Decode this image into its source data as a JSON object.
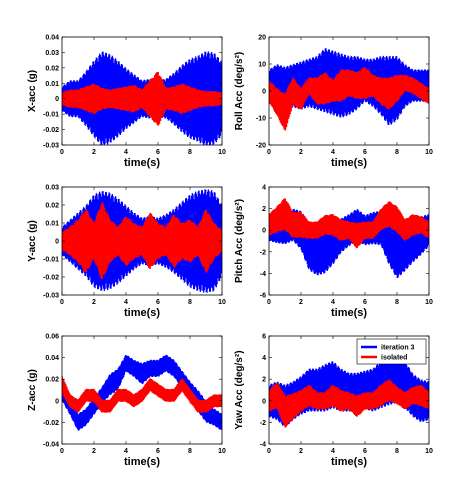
{
  "colors": {
    "iteration3": "#0000ff",
    "isolated": "#ff0000",
    "axis": "#000000"
  },
  "chart_data": [
    {
      "type": "line",
      "panel": "x-acc",
      "xlabel": "time(s)",
      "ylabel": "X-acc (g)",
      "xlim": [
        0,
        10
      ],
      "ylim": [
        -0.03,
        0.04
      ],
      "xticks": [
        "0",
        "2",
        "4",
        "6",
        "8",
        "10"
      ],
      "yticks": [
        "-0.03",
        "-0.02",
        "-0.01",
        "0",
        "0.01",
        "0.02",
        "0.03",
        "0.04"
      ],
      "legend": null,
      "series": [
        {
          "name": "iteration 3",
          "color": "#0000ff",
          "x": [
            0,
            0.5,
            1,
            1.5,
            2,
            2.5,
            3,
            3.5,
            4,
            4.5,
            5,
            5.5,
            6,
            6.5,
            7,
            7.5,
            8,
            8.5,
            9,
            9.5,
            10
          ],
          "center": [
            0,
            0,
            0,
            0,
            0,
            0,
            0,
            0,
            0,
            0,
            0,
            0,
            0,
            0,
            0,
            0,
            0,
            0,
            0,
            0,
            0
          ],
          "amplitude": [
            0.008,
            0.012,
            0.012,
            0.018,
            0.025,
            0.031,
            0.029,
            0.025,
            0.02,
            0.016,
            0.012,
            0.013,
            0.012,
            0.013,
            0.017,
            0.022,
            0.026,
            0.028,
            0.031,
            0.03,
            0.024
          ]
        },
        {
          "name": "isolated",
          "color": "#ff0000",
          "x": [
            0,
            0.5,
            1,
            1.5,
            2,
            2.5,
            3,
            3.5,
            4,
            4.5,
            5,
            5.5,
            6,
            6.5,
            7,
            7.5,
            8,
            8.5,
            9,
            9.5,
            10
          ],
          "center": [
            0,
            0,
            0,
            0,
            0,
            0,
            0,
            0,
            0,
            0,
            0,
            0,
            0,
            0,
            0,
            0,
            0,
            0,
            0,
            0,
            0
          ],
          "amplitude": [
            0.004,
            0.006,
            0.006,
            0.008,
            0.01,
            0.007,
            0.006,
            0.007,
            0.008,
            0.009,
            0.006,
            0.012,
            0.018,
            0.007,
            0.008,
            0.01,
            0.008,
            0.006,
            0.005,
            0.005,
            0.004
          ]
        }
      ]
    },
    {
      "type": "line",
      "panel": "roll-acc",
      "xlabel": "time(s)",
      "ylabel": "Roll Acc (deg/s²)",
      "xlim": [
        0,
        10
      ],
      "ylim": [
        -20,
        20
      ],
      "xticks": [
        "0",
        "2",
        "4",
        "6",
        "8",
        "10"
      ],
      "yticks": [
        "-20",
        "-10",
        "0",
        "10",
        "20"
      ],
      "legend": null,
      "series": [
        {
          "name": "iteration 3",
          "color": "#0000ff",
          "x": [
            0,
            0.5,
            1,
            1.5,
            2,
            2.5,
            3,
            3.5,
            4,
            4.5,
            5,
            5.5,
            6,
            6.5,
            7,
            7.5,
            8,
            8.5,
            9,
            9.5,
            10
          ],
          "center": [
            2,
            2,
            1,
            2,
            2,
            3,
            3,
            4,
            3,
            2,
            2,
            3,
            4,
            3,
            2,
            0,
            1,
            2,
            2,
            2,
            2
          ],
          "amplitude": [
            6,
            8,
            8,
            8,
            9,
            9,
            10,
            12,
            12,
            12,
            11,
            10,
            8,
            9,
            11,
            13,
            12,
            8,
            6,
            6,
            6
          ]
        },
        {
          "name": "isolated",
          "color": "#ff0000",
          "x": [
            0,
            0.5,
            1,
            1.5,
            2,
            2.5,
            3,
            3.5,
            4,
            4.5,
            5,
            5.5,
            6,
            6.5,
            7,
            7.5,
            8,
            8.5,
            9,
            9.5,
            10
          ],
          "center": [
            0,
            -4,
            -8,
            0,
            -3,
            2,
            0,
            1,
            0,
            2,
            3,
            2,
            3,
            2,
            0,
            -1,
            1,
            3,
            2,
            0,
            -2
          ],
          "amplitude": [
            4,
            5,
            7,
            5,
            4,
            3,
            5,
            6,
            4,
            6,
            5,
            5,
            6,
            4,
            5,
            6,
            5,
            3,
            3,
            3,
            3
          ]
        }
      ]
    },
    {
      "type": "line",
      "panel": "y-acc",
      "xlabel": "time(s)",
      "ylabel": "Y-acc (g)",
      "xlim": [
        0,
        10
      ],
      "ylim": [
        -0.03,
        0.03
      ],
      "xticks": [
        "0",
        "2",
        "4",
        "6",
        "8",
        "10"
      ],
      "yticks": [
        "-0.03",
        "-0.02",
        "-0.01",
        "0",
        "0.01",
        "0.02",
        "0.03"
      ],
      "legend": null,
      "series": [
        {
          "name": "iteration 3",
          "color": "#0000ff",
          "x": [
            0,
            0.5,
            1,
            1.5,
            2,
            2.5,
            3,
            3.5,
            4,
            4.5,
            5,
            5.5,
            6,
            6.5,
            7,
            7.5,
            8,
            8.5,
            9,
            9.5,
            10
          ],
          "center": [
            0,
            0,
            0,
            0,
            0,
            0,
            0,
            0,
            0,
            0,
            0,
            0,
            0,
            0,
            0,
            0,
            0,
            0,
            0,
            0,
            0
          ],
          "amplitude": [
            0.008,
            0.012,
            0.016,
            0.02,
            0.026,
            0.028,
            0.027,
            0.024,
            0.02,
            0.016,
            0.013,
            0.014,
            0.013,
            0.015,
            0.018,
            0.022,
            0.026,
            0.028,
            0.029,
            0.028,
            0.02
          ]
        },
        {
          "name": "isolated",
          "color": "#ff0000",
          "x": [
            0,
            0.5,
            1,
            1.5,
            2,
            2.5,
            3,
            3.5,
            4,
            4.5,
            5,
            5.5,
            6,
            6.5,
            7,
            7.5,
            8,
            8.5,
            9,
            9.5,
            10
          ],
          "center": [
            0,
            0,
            0,
            0,
            0,
            0,
            0,
            0,
            0,
            0,
            0,
            0,
            0,
            0,
            0,
            0,
            0,
            0,
            0,
            0,
            0
          ],
          "amplitude": [
            0.005,
            0.008,
            0.012,
            0.018,
            0.01,
            0.022,
            0.012,
            0.008,
            0.014,
            0.01,
            0.008,
            0.016,
            0.01,
            0.008,
            0.015,
            0.01,
            0.012,
            0.008,
            0.018,
            0.01,
            0.006
          ]
        }
      ]
    },
    {
      "type": "line",
      "panel": "pitch-acc",
      "xlabel": "time(s)",
      "ylabel": "Pitch Acc (deg/s²)",
      "xlim": [
        0,
        10
      ],
      "ylim": [
        -6,
        4
      ],
      "xticks": [
        "0",
        "2",
        "4",
        "6",
        "8",
        "10"
      ],
      "yticks": [
        "-6",
        "-4",
        "-2",
        "0",
        "2",
        "4"
      ],
      "legend": null,
      "series": [
        {
          "name": "iteration 3",
          "color": "#0000ff",
          "x": [
            0,
            0.5,
            1,
            1.5,
            2,
            2.5,
            3,
            3.5,
            4,
            4.5,
            5,
            5.5,
            6,
            6.5,
            7,
            7.5,
            8,
            8.5,
            9,
            9.5,
            10
          ],
          "center": [
            0,
            0,
            0,
            0.5,
            0,
            -1.5,
            -2,
            -1.5,
            -1,
            -0.5,
            0,
            0.5,
            0,
            0.2,
            0.2,
            -1,
            -2,
            -1.5,
            -1,
            -0.5,
            0
          ],
          "amplitude": [
            1,
            1.2,
            1.3,
            1.5,
            1.8,
            2.2,
            2.2,
            2.5,
            2.2,
            1.6,
            1.5,
            1.5,
            1.4,
            1.5,
            1.6,
            2.2,
            2.5,
            2.3,
            2,
            1.8,
            1.5
          ]
        },
        {
          "name": "isolated",
          "color": "#ff0000",
          "x": [
            0,
            0.5,
            1,
            1.5,
            2,
            2.5,
            3,
            3.5,
            4,
            4.5,
            5,
            5.5,
            6,
            6.5,
            7,
            7.5,
            8,
            8.5,
            9,
            9.5,
            10
          ],
          "center": [
            0.5,
            1,
            1.5,
            0.5,
            0.5,
            0,
            0,
            0.5,
            0.5,
            0,
            0,
            -0.5,
            0,
            0,
            1,
            1.5,
            1,
            0,
            0.5,
            0.5,
            0
          ],
          "amplitude": [
            1,
            1.2,
            1.5,
            1.2,
            1.2,
            0.8,
            0.8,
            0.9,
            1,
            1,
            0.8,
            1.2,
            0.8,
            0.8,
            1,
            1.2,
            1.2,
            1,
            1,
            0.8,
            0.8
          ]
        }
      ]
    },
    {
      "type": "line",
      "panel": "z-acc",
      "xlabel": "time(s)",
      "ylabel": "Z-acc (g)",
      "xlim": [
        0,
        10
      ],
      "ylim": [
        -0.04,
        0.06
      ],
      "xticks": [
        "0",
        "2",
        "4",
        "6",
        "8",
        "10"
      ],
      "yticks": [
        "-0.04",
        "-0.02",
        "0",
        "0.02",
        "0.04",
        "0.06"
      ],
      "legend": null,
      "series": [
        {
          "name": "iteration 3",
          "color": "#0000ff",
          "x": [
            0,
            0.5,
            1,
            1.5,
            2,
            2.5,
            3,
            3.5,
            4,
            4.5,
            5,
            5.5,
            6,
            6.5,
            7,
            7.5,
            8,
            8.5,
            9,
            9.5,
            10
          ],
          "center": [
            0.01,
            -0.005,
            -0.02,
            -0.015,
            -0.005,
            0.005,
            0.015,
            0.02,
            0.035,
            0.03,
            0.025,
            0.03,
            0.03,
            0.035,
            0.03,
            0.02,
            0.01,
            0,
            -0.01,
            -0.015,
            -0.02
          ],
          "amplitude": [
            0.01,
            0.008,
            0.008,
            0.008,
            0.008,
            0.008,
            0.01,
            0.01,
            0.008,
            0.008,
            0.01,
            0.008,
            0.008,
            0.008,
            0.008,
            0.008,
            0.008,
            0.01,
            0.01,
            0.008,
            0.008
          ]
        },
        {
          "name": "isolated",
          "color": "#ff0000",
          "x": [
            0,
            0.5,
            1,
            1.5,
            2,
            2.5,
            3,
            3.5,
            4,
            4.5,
            5,
            5.5,
            6,
            6.5,
            7,
            7.5,
            8,
            8.5,
            9,
            9.5,
            10
          ],
          "center": [
            0.015,
            0,
            -0.005,
            0.005,
            0.005,
            -0.005,
            -0.005,
            0.005,
            0.005,
            0,
            0.005,
            0.015,
            0.01,
            0.005,
            0.005,
            0.015,
            0.005,
            -0.005,
            -0.005,
            0,
            0
          ],
          "amplitude": [
            0.008,
            0.006,
            0.006,
            0.006,
            0.006,
            0.006,
            0.006,
            0.006,
            0.006,
            0.006,
            0.006,
            0.006,
            0.006,
            0.006,
            0.006,
            0.006,
            0.006,
            0.006,
            0.006,
            0.006,
            0.006
          ]
        }
      ]
    },
    {
      "type": "line",
      "panel": "yaw-acc",
      "xlabel": "time(s)",
      "ylabel": "Yaw Acc (deg/s²)",
      "xlim": [
        0,
        10
      ],
      "ylim": [
        -4,
        6
      ],
      "xticks": [
        "0",
        "2",
        "4",
        "6",
        "8",
        "10"
      ],
      "yticks": [
        "-4",
        "-2",
        "0",
        "2",
        "4",
        "6"
      ],
      "legend": {
        "position": "top-right",
        "entries": [
          "iteration 3",
          "isolated"
        ]
      },
      "series": [
        {
          "name": "iteration 3",
          "color": "#0000ff",
          "x": [
            0,
            0.5,
            1,
            1.5,
            2,
            2.5,
            3,
            3.5,
            4,
            4.5,
            5,
            5.5,
            6,
            6.5,
            7,
            7.5,
            8,
            8.5,
            9,
            9.5,
            10
          ],
          "center": [
            0,
            0,
            -0.5,
            0,
            0.5,
            1,
            1,
            1.2,
            1.5,
            1,
            0.8,
            0.8,
            1,
            1,
            1.5,
            2,
            2,
            1.5,
            0.5,
            0,
            0
          ],
          "amplitude": [
            1.5,
            1.8,
            2,
            1.8,
            1.8,
            2,
            2,
            2.2,
            2.2,
            2,
            1.8,
            1.8,
            1.8,
            2,
            2.2,
            2.4,
            2.2,
            2.2,
            2,
            2,
            1.8
          ]
        },
        {
          "name": "isolated",
          "color": "#ff0000",
          "x": [
            0,
            0.5,
            1,
            1.5,
            2,
            2.5,
            3,
            3.5,
            4,
            4.5,
            5,
            5.5,
            6,
            6.5,
            7,
            7.5,
            8,
            8.5,
            9,
            9.5,
            10
          ],
          "center": [
            0,
            0.5,
            -1,
            -0.5,
            0,
            0.5,
            0,
            0,
            0.5,
            0,
            0,
            -0.5,
            0,
            0,
            0.5,
            1,
            0.5,
            0,
            0.5,
            0.5,
            0
          ],
          "amplitude": [
            1,
            1.2,
            1.5,
            1.2,
            1,
            1,
            0.8,
            0.8,
            1,
            1,
            0.8,
            1,
            0.8,
            0.8,
            1,
            1,
            0.8,
            0.8,
            0.8,
            1,
            0.8
          ]
        }
      ]
    }
  ]
}
